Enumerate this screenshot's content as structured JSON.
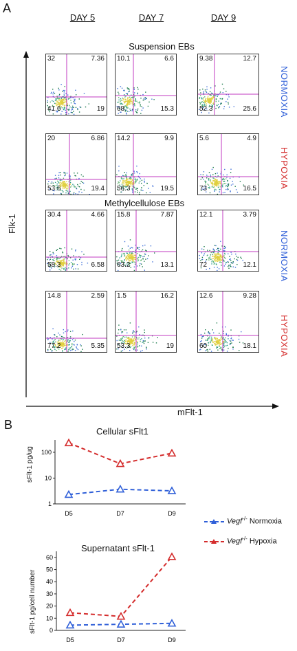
{
  "panel_a_label": "A",
  "panel_b_label": "B",
  "days": [
    "DAY 5",
    "DAY 7",
    "DAY 9"
  ],
  "section_titles": {
    "suspension": "Suspension  EBs",
    "methylcellulose": "Methylcellulose EBs"
  },
  "conditions": {
    "normoxia": "NORMOXIA",
    "hypoxia": "HYPOXIA"
  },
  "y_axis_label": "Flk-1",
  "x_axis_label": "mFlt-1",
  "flow_quadrants": [
    [
      {
        "ul": "32",
        "ur": "7.36",
        "ll": "41.6",
        "lr": "19"
      },
      {
        "ul": "10.1",
        "ur": "6.6",
        "ll": "68",
        "lr": "15.3"
      },
      {
        "ul": "9.38",
        "ur": "12.7",
        "ll": "52.3",
        "lr": "25.6"
      }
    ],
    [
      {
        "ul": "20",
        "ur": "6.86",
        "ll": "53.6",
        "lr": "19.4"
      },
      {
        "ul": "14.2",
        "ur": "9.9",
        "ll": "56.3",
        "lr": "19.5"
      },
      {
        "ul": "5.6",
        "ur": "4.9",
        "ll": "73",
        "lr": "16.5"
      }
    ],
    [
      {
        "ul": "30.4",
        "ur": "4.66",
        "ll": "58.3",
        "lr": "6.58"
      },
      {
        "ul": "15.8",
        "ur": "7.87",
        "ll": "63.2",
        "lr": "13.1"
      },
      {
        "ul": "12.1",
        "ur": "3.79",
        "ll": "72",
        "lr": "12.1"
      }
    ],
    [
      {
        "ul": "14.8",
        "ur": "2.59",
        "ll": "77.2",
        "lr": "5.35"
      },
      {
        "ul": "1.5",
        "ur": "16.2",
        "ll": "53.3",
        "lr": "19"
      },
      {
        "ul": "12.6",
        "ur": "9.28",
        "ll": "60",
        "lr": "18.1"
      }
    ]
  ],
  "colors": {
    "normoxia": "#2f5fd8",
    "hypoxia": "#d42c2c",
    "gate": "#c238c2"
  },
  "legend": {
    "normoxia": {
      "gene": "Vegf",
      "sup": "-/-",
      "text": " Normoxia"
    },
    "hypoxia": {
      "gene": "Vegf",
      "sup": "-/-",
      "text": " Hypoxia"
    }
  },
  "chart_data": [
    {
      "type": "line",
      "title": "Cellular sFlt1",
      "ylabel": "sFlt-1 pg/ug",
      "yscale": "log",
      "ylim": [
        1,
        300
      ],
      "yticks": [
        "1",
        "10",
        "100"
      ],
      "categories": [
        "D5",
        "D7",
        "D9"
      ],
      "series": [
        {
          "name": "Vegf-/- Normoxia",
          "values": [
            2.3,
            3.7,
            3.2
          ]
        },
        {
          "name": "Vegf-/- Hypoxia",
          "values": [
            230,
            36,
            92
          ]
        }
      ]
    },
    {
      "type": "line",
      "title": "Supernatant sFlt-1",
      "ylabel": "sFlt-1 pg/cell number",
      "ylim": [
        0,
        65
      ],
      "yticks": [
        "0",
        "10",
        "20",
        "30",
        "40",
        "50",
        "60"
      ],
      "categories": [
        "D5",
        "D7",
        "D9"
      ],
      "series": [
        {
          "name": "Vegf-/- Normoxia",
          "values": [
            4.3,
            5,
            5.8
          ]
        },
        {
          "name": "Vegf-/- Hypoxia",
          "values": [
            14.5,
            11.5,
            60.5
          ]
        }
      ]
    }
  ]
}
